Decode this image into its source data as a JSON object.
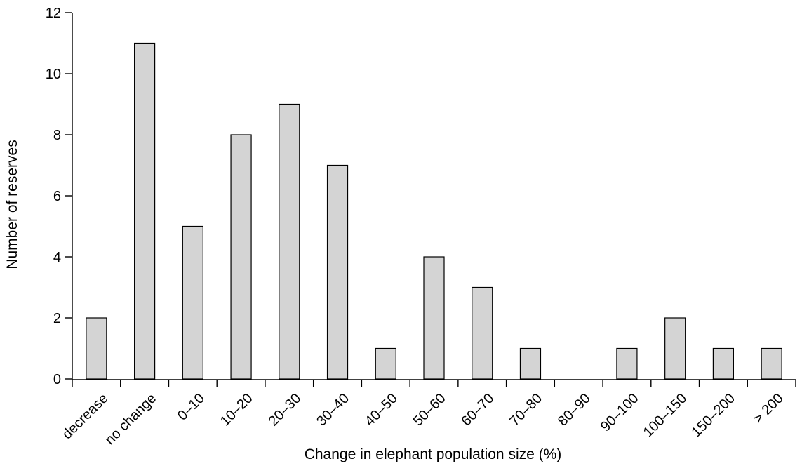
{
  "chart_data": {
    "type": "bar",
    "title": "",
    "xlabel": "Change in elephant population size (%)",
    "ylabel": "Number of reserves",
    "categories": [
      "decrease",
      "no change",
      "0–10",
      "10–20",
      "20–30",
      "30–40",
      "40–50",
      "50–60",
      "60–70",
      "70–80",
      "80–90",
      "90–100",
      "100–150",
      "150–200",
      "> 200"
    ],
    "values": [
      2,
      11,
      5,
      8,
      9,
      7,
      1,
      4,
      3,
      1,
      0,
      1,
      2,
      1,
      1
    ],
    "ylim": [
      0,
      12
    ],
    "yticks": [
      0,
      2,
      4,
      6,
      8,
      10,
      12
    ],
    "grid": false,
    "legend": "none",
    "colors": {
      "bar_fill": "#d4d4d4",
      "bar_stroke": "#000000",
      "axis": "#000000"
    }
  }
}
